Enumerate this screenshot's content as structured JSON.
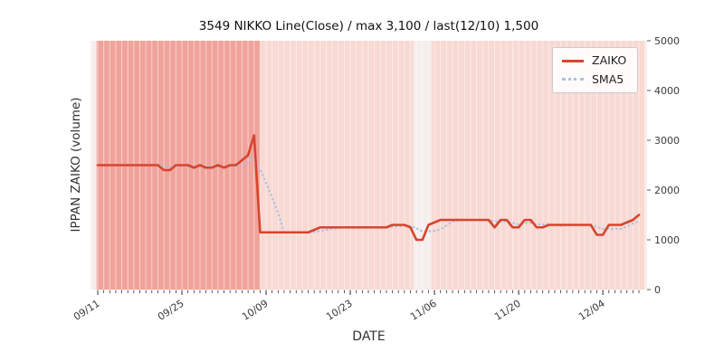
{
  "chart_data": {
    "type": "line",
    "title": "3549 NIKKO Line(Close) / max 3,100 / last(12/10) 1,500",
    "xlabel": "DATE",
    "ylabel": "IPPAN ZAIKO (volume)",
    "ylim": [
      0,
      5000
    ],
    "yticks": [
      0,
      1000,
      2000,
      3000,
      4000,
      5000
    ],
    "xticks": [
      {
        "index": 0,
        "label": "09/11"
      },
      {
        "index": 14,
        "label": "09/25"
      },
      {
        "index": 28,
        "label": "10/09"
      },
      {
        "index": 42,
        "label": "10/23"
      },
      {
        "index": 56,
        "label": "11/06"
      },
      {
        "index": 70,
        "label": "11/20"
      },
      {
        "index": 84,
        "label": "12/04"
      }
    ],
    "n_points": 91,
    "x_start_date": "09/11",
    "x_end_date": "12/10",
    "max_value": 3100,
    "last_point": {
      "date": "12/10",
      "value": 1500
    },
    "plot_bg": "#f5eeec",
    "grid": "vertical-daily-white",
    "legend_position": "upper-right",
    "spans": [
      {
        "from": -0.2,
        "to": 27.0,
        "color": "#f0a39b",
        "note": "darker shaded period"
      },
      {
        "from": 27.0,
        "to": 52.5,
        "color": "#f8d9d3",
        "note": "lighter shaded period"
      },
      {
        "from": 55.5,
        "to": 91.0,
        "color": "#f8d9d3",
        "note": "lighter shaded period"
      }
    ],
    "series": [
      {
        "name": "ZAIKO",
        "style": "solid",
        "color": "#d8442e",
        "values": [
          2500,
          2500,
          2500,
          2500,
          2500,
          2500,
          2500,
          2500,
          2500,
          2500,
          2500,
          2400,
          2400,
          2500,
          2500,
          2500,
          2450,
          2500,
          2450,
          2450,
          2500,
          2450,
          2500,
          2500,
          2600,
          2700,
          3100,
          1150,
          1150,
          1150,
          1150,
          1150,
          1150,
          1150,
          1150,
          1150,
          1200,
          1250,
          1250,
          1250,
          1250,
          1250,
          1250,
          1250,
          1250,
          1250,
          1250,
          1250,
          1250,
          1300,
          1300,
          1300,
          1250,
          1000,
          1000,
          1300,
          1350,
          1400,
          1400,
          1400,
          1400,
          1400,
          1400,
          1400,
          1400,
          1400,
          1250,
          1400,
          1400,
          1250,
          1250,
          1400,
          1400,
          1250,
          1250,
          1300,
          1300,
          1300,
          1300,
          1300,
          1300,
          1300,
          1300,
          1100,
          1100,
          1300,
          1300,
          1300,
          1350,
          1400,
          1500
        ]
      },
      {
        "name": "SMA5",
        "style": "dotted",
        "color": "#a9c4dd",
        "derived": "5-point moving average of ZAIKO"
      }
    ]
  }
}
